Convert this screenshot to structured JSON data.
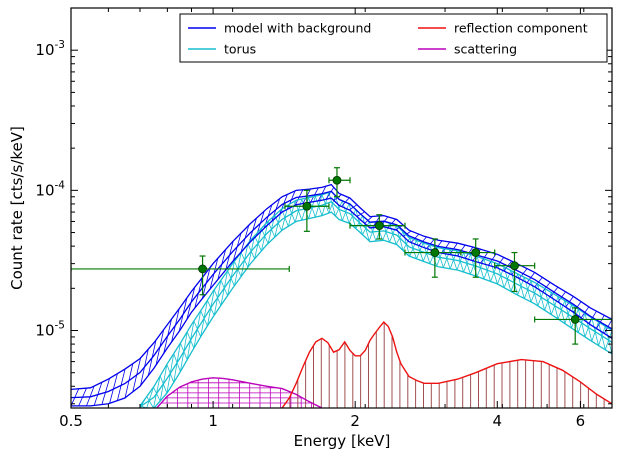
{
  "chart_data": {
    "type": "line",
    "x_scale": "log",
    "y_scale": "log",
    "xlim": [
      0.5,
      7.0
    ],
    "ylim": [
      2.8e-06,
      0.002
    ],
    "xlabel": "Energy [keV]",
    "ylabel": "Count rate [cts/s/keV]",
    "x_ticks": [
      {
        "value": 0.5,
        "label": "0.5"
      },
      {
        "value": 1,
        "label": "1"
      },
      {
        "value": 2,
        "label": "2"
      },
      {
        "value": 4,
        "label": "4"
      },
      {
        "value": 6,
        "label": "6"
      }
    ],
    "y_ticks": [
      {
        "value": 1e-05,
        "mantissa": "10",
        "exponent": "-5"
      },
      {
        "value": 0.0001,
        "mantissa": "10",
        "exponent": "-4"
      },
      {
        "value": 0.001,
        "mantissa": "10",
        "exponent": "-3"
      }
    ],
    "legend_position": "top-right",
    "legend_columns": 2,
    "series": [
      {
        "name": "model with background",
        "color": "#0000ee",
        "band": "hatch-diagonal",
        "x": [
          0.5,
          0.55,
          0.6,
          0.65,
          0.7,
          0.75,
          0.8,
          0.85,
          0.9,
          0.95,
          1.0,
          1.1,
          1.2,
          1.3,
          1.4,
          1.5,
          1.6,
          1.7,
          1.78,
          1.85,
          1.95,
          2.05,
          2.15,
          2.3,
          2.45,
          2.6,
          2.8,
          3.0,
          3.3,
          3.6,
          4.0,
          4.4,
          4.8,
          5.3,
          5.8,
          6.3,
          7.0
        ],
        "upper": [
          3.8e-06,
          3.9e-06,
          4.5e-06,
          5.3e-06,
          6.3e-06,
          8.2e-06,
          1.1e-05,
          1.45e-05,
          1.9e-05,
          2.4e-05,
          3e-05,
          4.3e-05,
          5.8e-05,
          7.4e-05,
          9e-05,
          0.0001,
          0.000102,
          0.000105,
          0.00011,
          9.5e-05,
          8.8e-05,
          7.5e-05,
          6.5e-05,
          6.6e-05,
          6.2e-05,
          5.2e-05,
          4.7e-05,
          4.4e-05,
          4.2e-05,
          3.9e-05,
          3.5e-05,
          3e-05,
          2.6e-05,
          2.1e-05,
          1.75e-05,
          1.45e-05,
          1.2e-05
        ],
        "lower": [
          2.9e-06,
          2.9e-06,
          3e-06,
          3.3e-06,
          4e-06,
          5.4e-06,
          7.5e-06,
          1e-05,
          1.35e-05,
          1.7e-05,
          2.1e-05,
          3.1e-05,
          4.3e-05,
          5.6e-05,
          7e-05,
          7.9e-05,
          8.2e-05,
          8.5e-05,
          8.8e-05,
          7.8e-05,
          7.2e-05,
          6.2e-05,
          5.4e-05,
          5.5e-05,
          5.2e-05,
          4.3e-05,
          3.9e-05,
          3.6e-05,
          3.4e-05,
          3.1e-05,
          2.8e-05,
          2.4e-05,
          2.05e-05,
          1.65e-05,
          1.35e-05,
          1.1e-05,
          8.8e-06
        ]
      },
      {
        "name": "torus",
        "color": "#17becf",
        "band": "hatch-cross",
        "x": [
          0.7,
          0.75,
          0.8,
          0.85,
          0.9,
          0.95,
          1.0,
          1.1,
          1.2,
          1.3,
          1.4,
          1.5,
          1.6,
          1.7,
          1.78,
          1.85,
          1.95,
          2.05,
          2.15,
          2.3,
          2.45,
          2.6,
          2.8,
          3.0,
          3.3,
          3.6,
          4.0,
          4.4,
          4.8,
          5.3,
          5.8,
          6.3,
          7.0
        ],
        "upper": [
          2.9e-06,
          4e-06,
          5.8e-06,
          8e-06,
          1.1e-05,
          1.45e-05,
          1.9e-05,
          3e-05,
          4.4e-05,
          5.9e-05,
          7.4e-05,
          8.5e-05,
          8.9e-05,
          9.3e-05,
          9.8e-05,
          8.6e-05,
          8e-05,
          6.8e-05,
          5.9e-05,
          6e-05,
          5.6e-05,
          4.6e-05,
          4.2e-05,
          3.9e-05,
          3.7e-05,
          3.4e-05,
          3e-05,
          2.55e-05,
          2.2e-05,
          1.8e-05,
          1.5e-05,
          1.25e-05,
          1e-05
        ],
        "lower": [
          2.8e-06,
          2.8e-06,
          3.6e-06,
          5e-06,
          7e-06,
          9.5e-06,
          1.25e-05,
          2e-05,
          3e-05,
          4.1e-05,
          5.2e-05,
          6e-05,
          6.3e-05,
          6.6e-05,
          7e-05,
          6.2e-05,
          5.8e-05,
          5e-05,
          4.3e-05,
          4.4e-05,
          4.1e-05,
          3.4e-05,
          3.1e-05,
          2.85e-05,
          2.7e-05,
          2.45e-05,
          2.15e-05,
          1.8e-05,
          1.55e-05,
          1.25e-05,
          1.02e-05,
          8.5e-06,
          6.8e-06
        ]
      },
      {
        "name": "reflection component",
        "color": "#ee1111",
        "band": "drop-lines",
        "x": [
          1.4,
          1.45,
          1.5,
          1.55,
          1.6,
          1.65,
          1.7,
          1.75,
          1.8,
          1.85,
          1.9,
          1.95,
          2.0,
          2.05,
          2.1,
          2.15,
          2.2,
          2.25,
          2.3,
          2.35,
          2.4,
          2.45,
          2.5,
          2.55,
          2.6,
          2.7,
          2.8,
          3.0,
          3.3,
          3.6,
          4.0,
          4.5,
          5.0,
          5.5,
          6.0,
          6.5,
          7.0
        ],
        "y": [
          2.8e-06,
          3.3e-06,
          4.2e-06,
          5.5e-06,
          7e-06,
          8.3e-06,
          8.8e-06,
          8.2e-06,
          7e-06,
          7.3e-06,
          8.3e-06,
          7.2e-06,
          6.6e-06,
          6.6e-06,
          7.2e-06,
          8.5e-06,
          9.5e-06,
          1.05e-05,
          1.15e-05,
          1.07e-05,
          9e-06,
          7e-06,
          5.8e-06,
          5.2e-06,
          4.7e-06,
          4.4e-06,
          4.2e-06,
          4.2e-06,
          4.5e-06,
          5e-06,
          5.8e-06,
          6.2e-06,
          6e-06,
          5.2e-06,
          4.3e-06,
          3.5e-06,
          3e-06
        ]
      },
      {
        "name": "scattering",
        "color": "#bb00bb",
        "band": "hatch-grid",
        "x": [
          0.76,
          0.8,
          0.85,
          0.9,
          0.95,
          1.0,
          1.05,
          1.1,
          1.2,
          1.3,
          1.4,
          1.5,
          1.6,
          1.7
        ],
        "y": [
          2.8e-06,
          3.4e-06,
          3.95e-06,
          4.3e-06,
          4.5e-06,
          4.6e-06,
          4.55e-06,
          4.45e-06,
          4.2e-06,
          4e-06,
          3.85e-06,
          3.5e-06,
          3.1e-06,
          2.8e-06
        ]
      }
    ],
    "data_points": {
      "color": "#007700",
      "points": [
        {
          "x": 0.95,
          "y": 2.75e-05,
          "xerr": [
            0.5,
            1.45
          ],
          "yerr": [
            1.8e-05,
            3.4e-05
          ]
        },
        {
          "x": 1.58,
          "y": 7.7e-05,
          "xerr": [
            1.42,
            1.76
          ],
          "yerr": [
            5.1e-05,
            0.0001
          ]
        },
        {
          "x": 1.83,
          "y": 0.000118,
          "xerr": [
            1.76,
            1.95
          ],
          "yerr": [
            9e-05,
            0.000145
          ]
        },
        {
          "x": 2.25,
          "y": 5.6e-05,
          "xerr": [
            1.95,
            2.55
          ],
          "yerr": [
            4.5e-05,
            6.7e-05
          ]
        },
        {
          "x": 2.95,
          "y": 3.6e-05,
          "xerr": [
            2.55,
            3.35
          ],
          "yerr": [
            2.4e-05,
            4.5e-05
          ]
        },
        {
          "x": 3.6,
          "y": 3.6e-05,
          "xerr": [
            3.35,
            3.95
          ],
          "yerr": [
            2.4e-05,
            4.5e-05
          ]
        },
        {
          "x": 4.35,
          "y": 2.9e-05,
          "xerr": [
            3.95,
            4.8
          ],
          "yerr": [
            1.9e-05,
            3.6e-05
          ]
        },
        {
          "x": 5.85,
          "y": 1.2e-05,
          "xerr": [
            4.8,
            7.0
          ],
          "yerr": [
            8e-06,
            1.45e-05
          ]
        }
      ]
    }
  }
}
